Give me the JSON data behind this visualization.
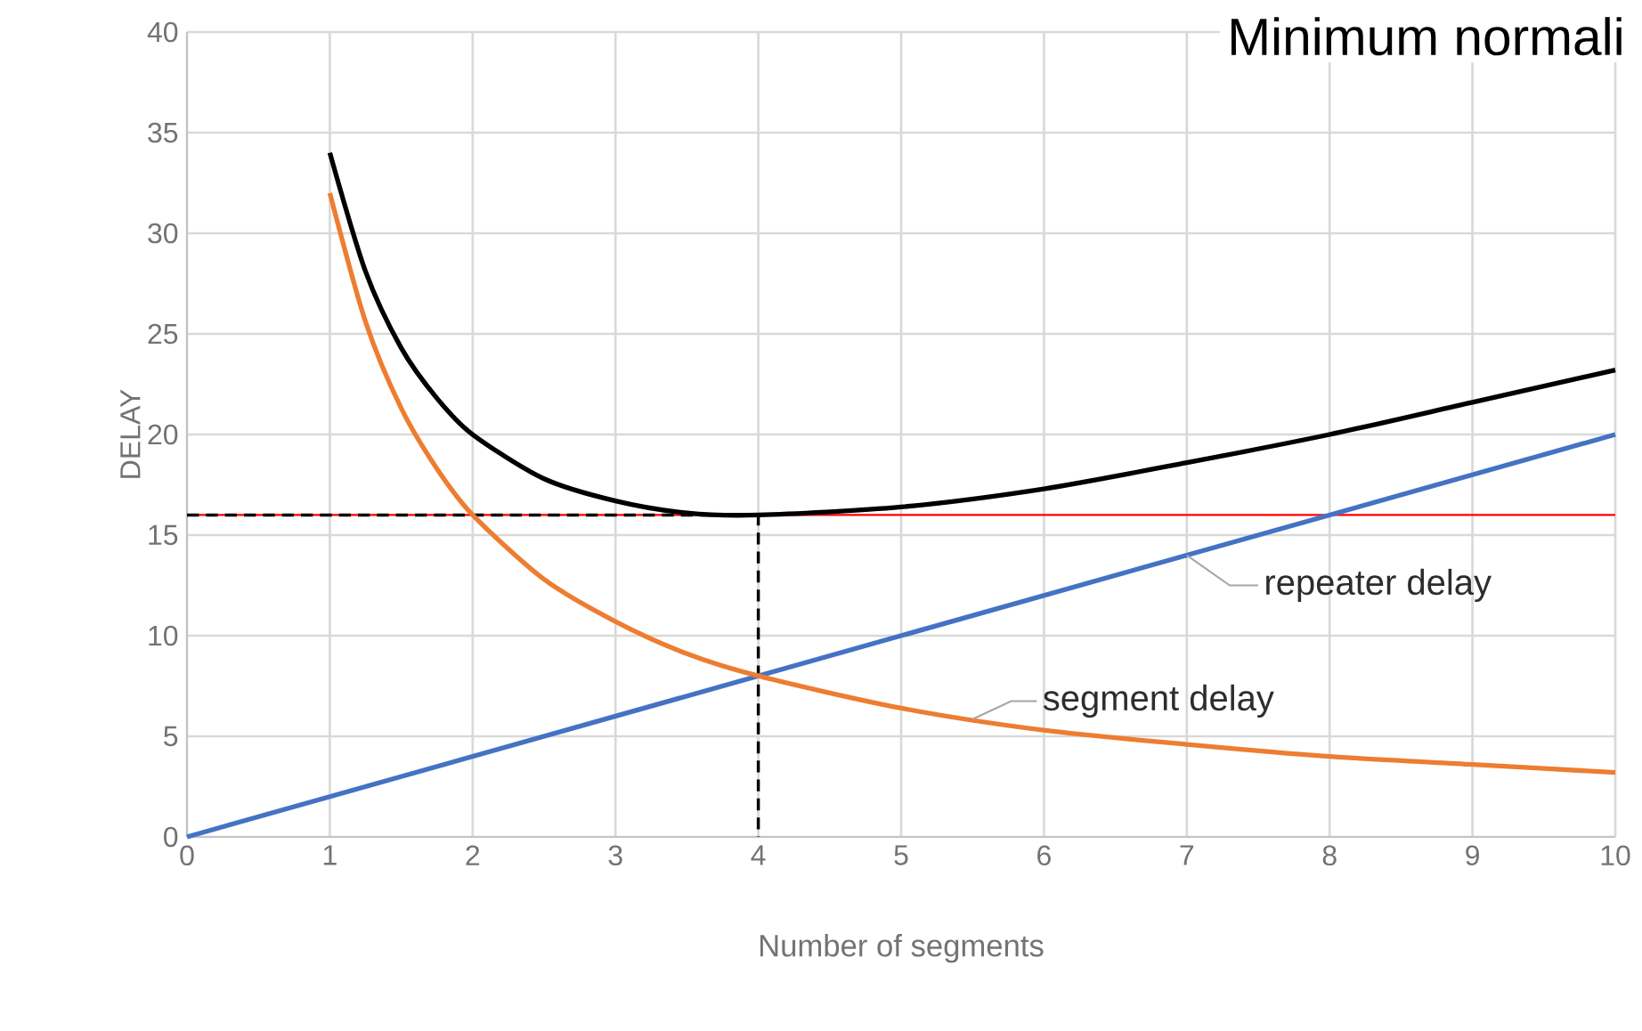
{
  "chart_data": {
    "type": "line",
    "title": "Minimum normali",
    "xlabel": "Number of segments",
    "ylabel": "DELAY",
    "xlim": [
      0,
      10
    ],
    "ylim": [
      0,
      40
    ],
    "xticks": [
      0,
      1,
      2,
      3,
      4,
      5,
      6,
      7,
      8,
      9,
      10
    ],
    "yticks": [
      0,
      5,
      10,
      15,
      20,
      25,
      30,
      35,
      40
    ],
    "grid": true,
    "series": [
      {
        "color": "#000000",
        "x": [
          1,
          1.25,
          1.5,
          1.75,
          2,
          2.5,
          3,
          3.5,
          4,
          5,
          6,
          7,
          8,
          9,
          10
        ],
        "values": [
          34,
          28.1,
          24.3,
          21.8,
          20,
          17.8,
          16.7,
          16.1,
          16,
          16.4,
          17.3,
          18.6,
          20,
          21.6,
          23.2
        ]
      },
      {
        "name": "segment delay",
        "color": "#ed7d31",
        "x": [
          1,
          1.25,
          1.5,
          1.75,
          2,
          2.5,
          3,
          3.5,
          4,
          5,
          6,
          7,
          8,
          9,
          10
        ],
        "values": [
          32,
          25.6,
          21.3,
          18.3,
          16,
          12.8,
          10.7,
          9.1,
          8,
          6.4,
          5.3,
          4.6,
          4,
          3.6,
          3.2
        ]
      },
      {
        "name": "repeater delay",
        "color": "#4472c4",
        "x": [
          0,
          10
        ],
        "values": [
          0,
          20
        ]
      },
      {
        "color": "#000000",
        "line_style": "dashed",
        "x": [
          0,
          4,
          4
        ],
        "values": [
          16,
          16,
          0
        ]
      }
    ],
    "ref_lines": [
      {
        "axis": "y",
        "value": 16,
        "color": "#ff0000"
      }
    ]
  }
}
